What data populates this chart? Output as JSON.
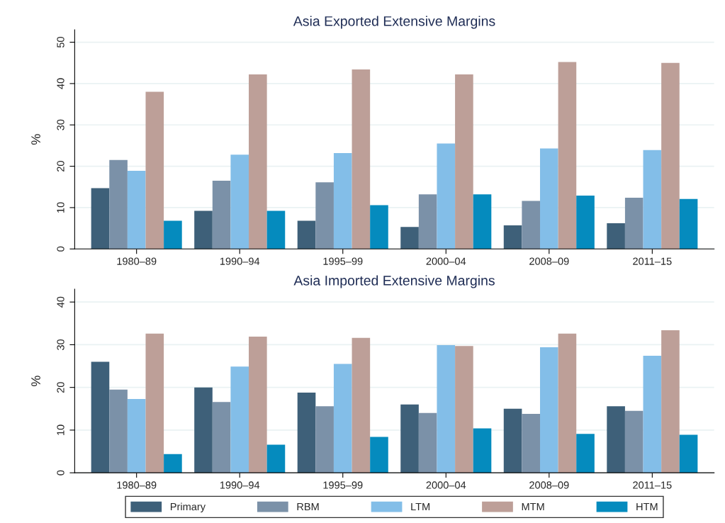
{
  "chart_data": [
    {
      "type": "bar",
      "title": "Asia Exported Extensive Margins",
      "ylabel": "%",
      "categories": [
        "1980–89",
        "1990–94",
        "1995–99",
        "2000–04",
        "2008–09",
        "2011–15"
      ],
      "ylim": [
        0,
        53
      ],
      "yticks": [
        0,
        10,
        20,
        30,
        40,
        50
      ],
      "grid": "y",
      "series": [
        {
          "color": "#3e6079",
          "values": [
            14.7,
            9.2,
            6.8,
            5.3,
            5.7,
            6.2
          ]
        },
        {
          "color": "#7b91a8",
          "values": [
            21.5,
            16.5,
            16.1,
            13.2,
            11.6,
            12.4
          ]
        },
        {
          "color": "#83bee8",
          "values": [
            18.9,
            22.8,
            23.2,
            25.5,
            24.3,
            23.9
          ]
        },
        {
          "color": "#bd9f98",
          "values": [
            38.0,
            42.2,
            43.4,
            42.2,
            45.2,
            45.0
          ]
        },
        {
          "color": "#058bbe",
          "values": [
            6.8,
            9.2,
            10.6,
            13.2,
            12.9,
            12.1
          ]
        }
      ]
    },
    {
      "type": "bar",
      "title": "Asia Imported Extensive Margins",
      "ylabel": "%",
      "categories": [
        "1980–89",
        "1990–94",
        "1995–99",
        "2000–04",
        "2008–09",
        "2011–15"
      ],
      "ylim": [
        0,
        43
      ],
      "yticks": [
        0,
        10,
        20,
        30,
        40
      ],
      "grid": "y",
      "legend": "bottom",
      "series": [
        {
          "name": "Primary",
          "color": "#3e6079",
          "values": [
            26.0,
            20.0,
            18.8,
            16.0,
            15.0,
            15.6
          ]
        },
        {
          "name": "RBM",
          "color": "#7b91a8",
          "values": [
            19.5,
            16.6,
            15.6,
            14.0,
            13.8,
            14.5
          ]
        },
        {
          "name": "LTM",
          "color": "#83bee8",
          "values": [
            17.3,
            24.9,
            25.5,
            29.9,
            29.4,
            27.4
          ]
        },
        {
          "name": "MTM",
          "color": "#bd9f98",
          "values": [
            32.6,
            31.9,
            31.6,
            29.7,
            32.6,
            33.4
          ]
        },
        {
          "name": "HTM",
          "color": "#058bbe",
          "values": [
            4.4,
            6.6,
            8.4,
            10.4,
            9.1,
            8.9
          ]
        }
      ]
    }
  ]
}
